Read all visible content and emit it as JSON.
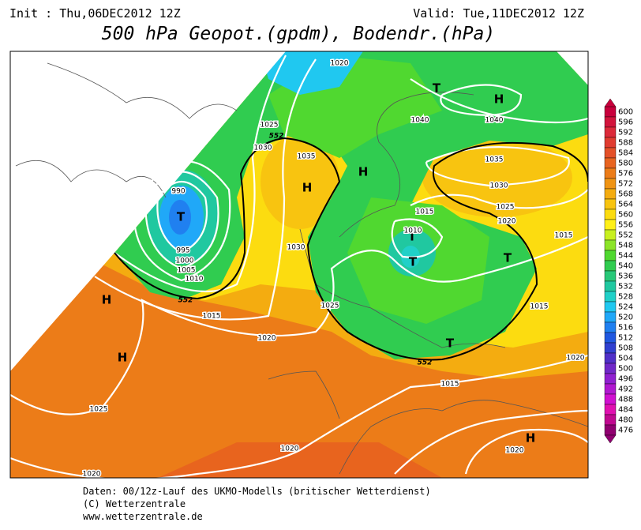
{
  "header": {
    "init": "Init : Thu,06DEC2012 12Z",
    "valid": "Valid: Tue,11DEC2012 12Z",
    "title": "500 hPa Geopot.(gpdm), Bodendr.(hPa)"
  },
  "legend": {
    "labels": [
      "600",
      "596",
      "592",
      "588",
      "584",
      "580",
      "576",
      "572",
      "568",
      "564",
      "560",
      "556",
      "552",
      "548",
      "544",
      "540",
      "536",
      "532",
      "528",
      "524",
      "520",
      "516",
      "512",
      "508",
      "504",
      "500",
      "496",
      "492",
      "488",
      "484",
      "480",
      "476"
    ],
    "colors": [
      "#c8003c",
      "#d2143c",
      "#dc2a3a",
      "#e03c30",
      "#e45028",
      "#e86420",
      "#ec7c18",
      "#f09414",
      "#f4ac10",
      "#f8c410",
      "#fcdc10",
      "#fff018",
      "#c8f020",
      "#8ce428",
      "#50d830",
      "#30cc50",
      "#28c878",
      "#20c8a0",
      "#20d0c8",
      "#20c8f0",
      "#20a8f8",
      "#2080f0",
      "#2058e0",
      "#3040d0",
      "#5030c8",
      "#7028c8",
      "#9020d0",
      "#b018d0",
      "#d010d0",
      "#e010b0",
      "#c00890",
      "#900070"
    ]
  },
  "map": {
    "centers": [
      "T",
      "H",
      "H",
      "T",
      "H",
      "H",
      "H",
      "T",
      "T",
      "T",
      "T",
      "H"
    ],
    "isobars": [
      "1020",
      "1025",
      "1030",
      "1035",
      "990",
      "995",
      "1000",
      "1005",
      "1010",
      "1015",
      "1030",
      "1025",
      "1020",
      "1025",
      "1020",
      "1020",
      "1040",
      "1040",
      "1035",
      "1030",
      "1025",
      "1020",
      "1015",
      "1015",
      "1010",
      "1015",
      "1015",
      "1020",
      "1020"
    ],
    "contours": [
      "552",
      "552",
      "552"
    ]
  },
  "footer": {
    "line1": "Daten: 00/12z-Lauf des UKMO-Modells (britischer Wetterdienst)",
    "line2": "(C) Wetterzentrale",
    "line3": "www.wetterzentrale.de"
  }
}
